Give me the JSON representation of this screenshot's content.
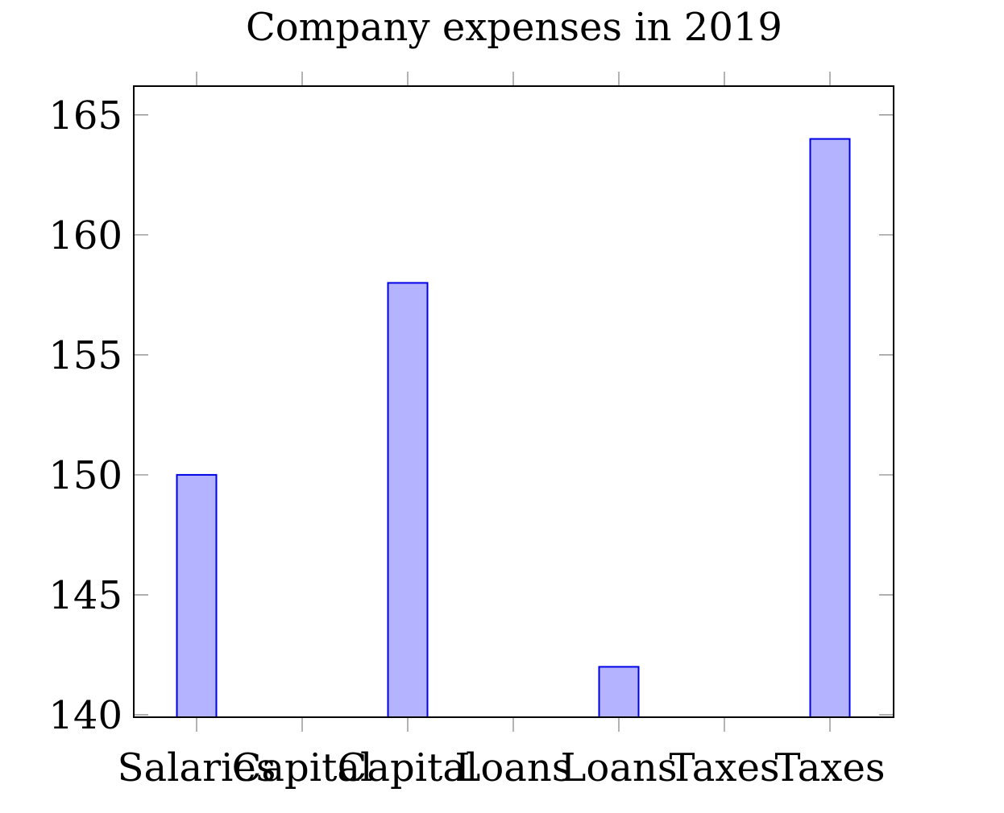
{
  "chart_data": {
    "type": "bar",
    "title": "Company expenses in 2019",
    "xlabel": "",
    "ylabel": "",
    "ylim": [
      139.9,
      166.2
    ],
    "yticks": [
      140,
      145,
      150,
      155,
      160,
      165
    ],
    "ytick_labels": [
      "140",
      "145",
      "150",
      "155",
      "160",
      "165"
    ],
    "categories": [
      "Salaries",
      "Capital",
      "Capital",
      "Loans",
      "Loans",
      "Taxes",
      "Taxes"
    ],
    "values": [
      150,
      null,
      158,
      null,
      142,
      null,
      164
    ],
    "bar_fill": "#b3b3ff",
    "bar_stroke": "#0000e6",
    "axis_color": "#000000",
    "tick_color": "#808080",
    "grid": false,
    "legend": false
  }
}
